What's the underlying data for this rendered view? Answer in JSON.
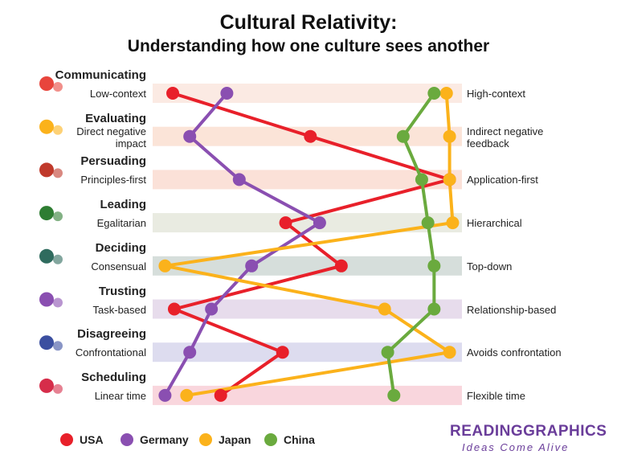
{
  "chart_data": {
    "type": "dot-line",
    "title": "Cultural Relativity:",
    "subtitle": "Understanding how one culture sees another",
    "categories": [
      "Communicating",
      "Evaluating",
      "Persuading",
      "Leading",
      "Deciding",
      "Trusting",
      "Disagreeing",
      "Scheduling"
    ],
    "left_labels": [
      "Low-context",
      "Direct negative impact",
      "Principles-first",
      "Egalitarian",
      "Consensual",
      "Task-based",
      "Confrontational",
      "Linear time"
    ],
    "right_labels": [
      "High-context",
      "Indirect negative feedback",
      "Application-first",
      "Hierarchical",
      "Top-down",
      "Relationship-based",
      "Avoids confrontation",
      "Flexible time"
    ],
    "band_colors": [
      "#fbeae3",
      "#fbe4d8",
      "#fbe1d8",
      "#e9ebe1",
      "#d6dedb",
      "#e7dcec",
      "#dddcef",
      "#f9d6dd"
    ],
    "xlim": [
      0,
      100
    ],
    "series": [
      {
        "name": "USA",
        "color": "#e8202a",
        "values": [
          6.5,
          51,
          96,
          43,
          61,
          7,
          42,
          22
        ]
      },
      {
        "name": "Germany",
        "color": "#8a4fb1",
        "values": [
          24,
          12,
          28,
          54,
          32,
          19,
          12,
          4
        ]
      },
      {
        "name": "Japan",
        "color": "#fbb21b",
        "values": [
          95,
          96,
          96,
          97,
          4,
          75,
          96,
          11
        ]
      },
      {
        "name": "China",
        "color": "#6aaa3e",
        "values": [
          91,
          81,
          87,
          89,
          91,
          91,
          76,
          78
        ]
      }
    ]
  },
  "logo": {
    "name": "READINGGRAPHICS",
    "tagline": "Ideas Come Alive"
  }
}
